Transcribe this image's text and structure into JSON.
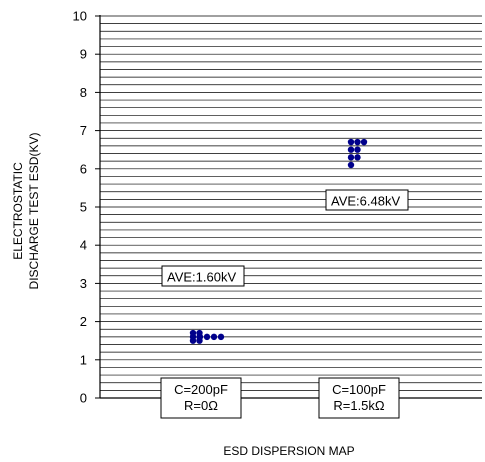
{
  "chart_data": {
    "type": "scatter",
    "title": "",
    "xlabel": "ESD DISPERSION MAP",
    "ylabel": [
      "ELECTROSTATIC",
      "DISCHARGE TEST ESD(KV)"
    ],
    "ylim": [
      0,
      10
    ],
    "yticks": [
      0,
      1,
      2,
      3,
      4,
      5,
      6,
      7,
      8,
      9,
      10
    ],
    "grid": true,
    "minor_grid_step": 0.2,
    "point_color": "#00008B",
    "groups": [
      {
        "label_lines": [
          "C=200pF",
          "R=0Ω"
        ],
        "annotation": "AVE:1.60kV",
        "points": [
          {
            "y": 1.5,
            "count": 2
          },
          {
            "y": 1.6,
            "count": 2
          },
          {
            "y": 1.7,
            "count": 2
          },
          {
            "y": 1.6,
            "count": 5
          }
        ]
      },
      {
        "label_lines": [
          "C=100pF",
          "R=1.5kΩ"
        ],
        "annotation": "AVE:6.48kV",
        "points": [
          {
            "y": 6.1,
            "count": 1
          },
          {
            "y": 6.3,
            "count": 2
          },
          {
            "y": 6.5,
            "count": 2
          },
          {
            "y": 6.7,
            "count": 3
          }
        ]
      }
    ]
  }
}
